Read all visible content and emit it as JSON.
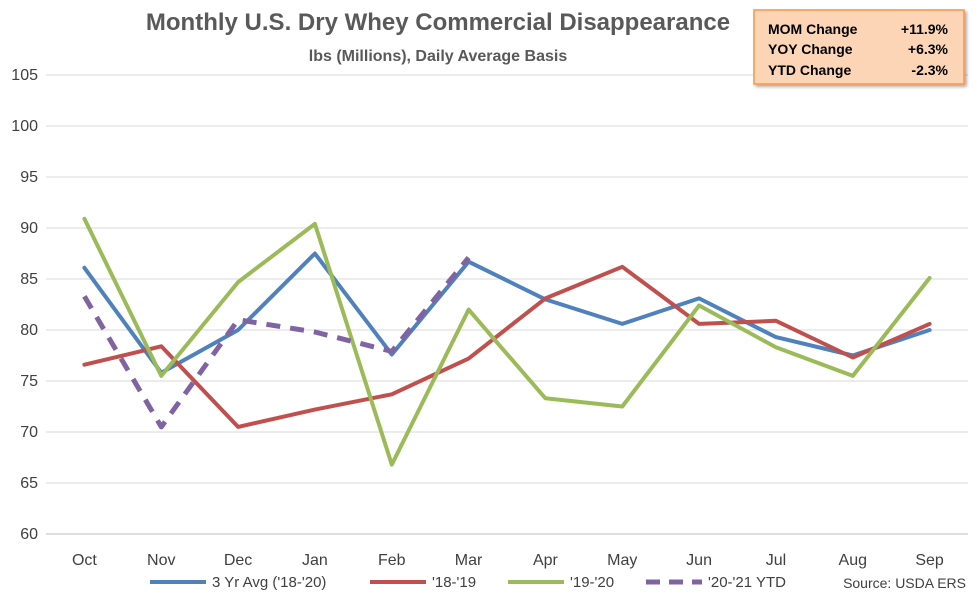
{
  "chart_data": {
    "type": "line",
    "title": "Monthly U.S. Dry Whey Commercial Disappearance",
    "subtitle": "lbs (Millions), Daily Average Basis",
    "categories": [
      "Oct",
      "Nov",
      "Dec",
      "Jan",
      "Feb",
      "Mar",
      "Apr",
      "May",
      "Jun",
      "Jul",
      "Aug",
      "Sep"
    ],
    "ylim": [
      60,
      105
    ],
    "yticks": [
      60,
      65,
      70,
      75,
      80,
      85,
      90,
      95,
      100,
      105
    ],
    "grid": true,
    "legend": "bottom",
    "series": [
      {
        "name": "3 Yr Avg ('18-'20)",
        "color": "#4F81BD",
        "dashed": false,
        "values": [
          86.1,
          75.8,
          80.0,
          87.5,
          77.6,
          86.7,
          83.0,
          80.6,
          83.1,
          79.3,
          77.5,
          80.0
        ]
      },
      {
        "name": "'18-'19",
        "color": "#C0504D",
        "dashed": false,
        "values": [
          76.6,
          78.4,
          70.5,
          72.2,
          73.7,
          77.2,
          83.1,
          86.2,
          80.6,
          80.9,
          77.3,
          80.6
        ]
      },
      {
        "name": "'19-'20",
        "color": "#9BBB59",
        "dashed": false,
        "values": [
          90.9,
          75.5,
          84.7,
          90.4,
          66.8,
          82.0,
          73.3,
          72.5,
          82.4,
          78.3,
          75.5,
          85.1
        ]
      },
      {
        "name": "'20-'21 YTD",
        "color": "#8064A2",
        "dashed": true,
        "values": [
          83.3,
          70.5,
          81.0,
          79.8,
          77.9,
          87.1,
          null,
          null,
          null,
          null,
          null,
          null
        ]
      }
    ],
    "source": "Source: USDA ERS"
  },
  "summary_box": {
    "rows": [
      {
        "label": "MOM Change",
        "value": "+11.9%"
      },
      {
        "label": "YOY Change",
        "value": "+6.3%"
      },
      {
        "label": "YTD Change",
        "value": "-2.3%"
      }
    ],
    "fill_color": "#FBD5B5",
    "border_color": "#F79646"
  }
}
